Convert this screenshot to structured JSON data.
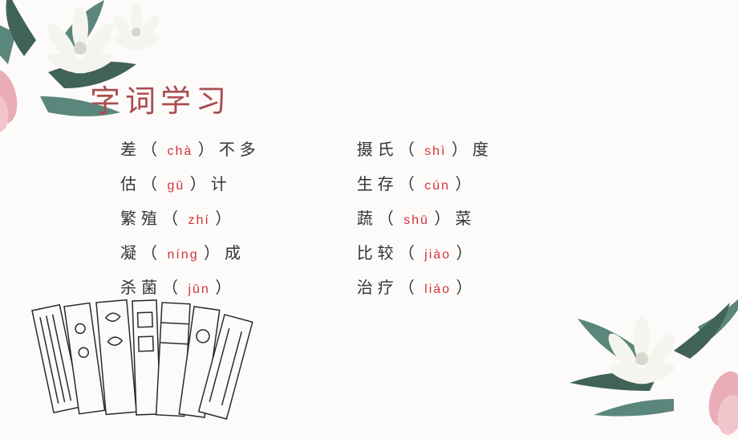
{
  "title": "字词学习",
  "colors": {
    "title_color": "#aa4d52",
    "pinyin_color": "#d13438",
    "text_color": "#333333",
    "background": "#fdfbf9",
    "leaf_green": "#4a7a6e",
    "leaf_dark": "#2d5248",
    "flower_white": "#f5f5f0",
    "flamingo_pink": "#e8a5b0"
  },
  "left_column": [
    {
      "before": "差",
      "pinyin": "chà",
      "after": "不多"
    },
    {
      "before": "估",
      "pinyin": "gū",
      "after": "计"
    },
    {
      "before": "繁殖",
      "pinyin": "zhí",
      "after": ""
    },
    {
      "before": "凝",
      "pinyin": "níng",
      "after": "成"
    },
    {
      "before": "杀菌",
      "pinyin": "jūn",
      "after": ""
    }
  ],
  "right_column": [
    {
      "before": "摄氏",
      "pinyin": "shì",
      "after": "度"
    },
    {
      "before": "生存",
      "pinyin": "cún",
      "after": ""
    },
    {
      "before": "蔬",
      "pinyin": "shū",
      "after": "菜"
    },
    {
      "before": "比较",
      "pinyin": "jiào",
      "after": ""
    },
    {
      "before": "治疗",
      "pinyin": "liáo",
      "after": ""
    }
  ]
}
